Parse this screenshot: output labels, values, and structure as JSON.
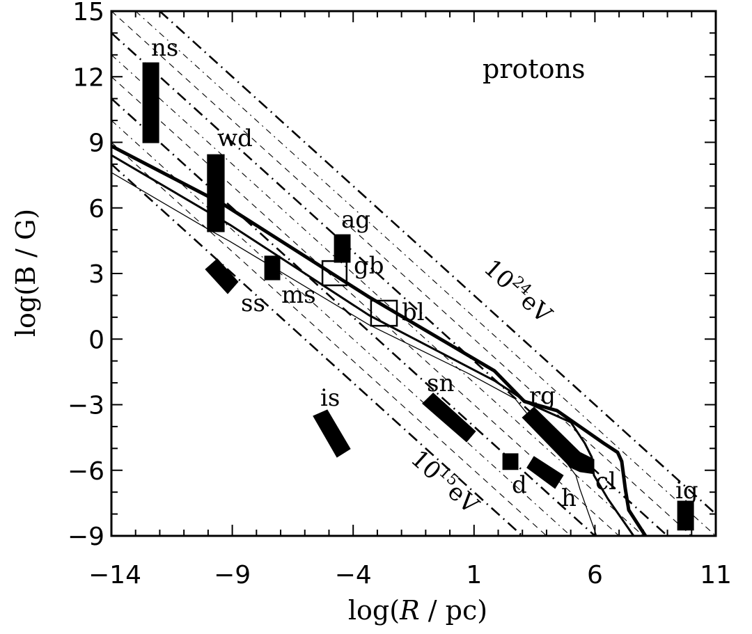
{
  "chart_data": {
    "type": "scatter",
    "title": "protons",
    "xlabel": "log(R / pc)",
    "xlabel_parts": {
      "pre": "log(",
      "var": "R",
      "post": " / pc)"
    },
    "ylabel": "log(B / G)",
    "ylabel_parts": {
      "pre": "log(",
      "var": "B",
      "post": " / G)"
    },
    "xlim": [
      -14,
      11
    ],
    "ylim": [
      -9,
      15
    ],
    "xticks": [
      -14,
      -9,
      -4,
      1,
      6,
      11
    ],
    "xtick_labels": [
      "−14",
      "−9",
      "−4",
      "1",
      "6",
      "11"
    ],
    "yticks": [
      -9,
      -6,
      -3,
      0,
      3,
      6,
      9,
      12,
      15
    ],
    "ytick_labels": [
      "−9",
      "−6",
      "−3",
      "0",
      "3",
      "6",
      "9",
      "12",
      "15"
    ],
    "energy_lines": {
      "description_slope": -1,
      "major": [
        {
          "log_E": 15,
          "intercept": -6
        },
        {
          "log_E": 18,
          "intercept": -3
        },
        {
          "log_E": 21,
          "intercept": 0
        },
        {
          "log_E": 24,
          "intercept": 3
        }
      ],
      "minor": [
        {
          "log_E": 16,
          "intercept": -5
        },
        {
          "log_E": 17,
          "intercept": -4
        },
        {
          "log_E": 19,
          "intercept": -2
        },
        {
          "log_E": 20,
          "intercept": -1
        },
        {
          "log_E": 22,
          "intercept": 1
        },
        {
          "log_E": 23,
          "intercept": 2
        }
      ],
      "labels": [
        {
          "base": "10",
          "exp": "15",
          "unit": "eV"
        },
        {
          "base": "10",
          "exp": "24",
          "unit": "eV"
        }
      ]
    },
    "curves": [
      {
        "name": "thick",
        "points": [
          [
            -14,
            8.83
          ],
          [
            -9.39,
            6.18
          ],
          [
            -3.34,
            1.92
          ],
          [
            1.84,
            -1.45
          ],
          [
            3.08,
            -2.85
          ],
          [
            4.43,
            -3.27
          ],
          [
            6.36,
            -4.76
          ],
          [
            6.94,
            -5.18
          ],
          [
            7.11,
            -5.59
          ],
          [
            7.26,
            -6.86
          ],
          [
            7.4,
            -7.82
          ],
          [
            8.09,
            -9.0
          ]
        ]
      },
      {
        "name": "medium",
        "points": [
          [
            -14,
            8.41
          ],
          [
            -9.1,
            5.23
          ],
          [
            -3.34,
            1.09
          ],
          [
            1.84,
            -1.9
          ],
          [
            3.28,
            -2.95
          ],
          [
            5.01,
            -3.81
          ],
          [
            5.58,
            -4.76
          ],
          [
            5.87,
            -5.4
          ],
          [
            5.96,
            -6.23
          ],
          [
            6.54,
            -7.31
          ],
          [
            7.6,
            -9.0
          ]
        ]
      },
      {
        "name": "thin",
        "points": [
          [
            -14,
            7.62
          ],
          [
            -9.97,
            5.01
          ],
          [
            -9.1,
            4.47
          ],
          [
            -3.34,
            0.65
          ],
          [
            0.78,
            -1.58
          ],
          [
            2.7,
            -2.73
          ],
          [
            3.86,
            -4.32
          ],
          [
            4.72,
            -5.5
          ],
          [
            5.21,
            -6.23
          ],
          [
            5.38,
            -6.86
          ],
          [
            5.79,
            -8.14
          ],
          [
            6.07,
            -9.0
          ]
        ]
      }
    ],
    "sources": [
      {
        "label": "ns",
        "filled": true,
        "shape": [
          [
            -12.7,
            12.64
          ],
          [
            -12.04,
            12.64
          ],
          [
            -12.04,
            8.98
          ],
          [
            -12.7,
            8.98
          ]
        ]
      },
      {
        "label": "wd",
        "filled": true,
        "shape": [
          [
            -10.03,
            8.44
          ],
          [
            -9.33,
            8.44
          ],
          [
            -9.33,
            4.91
          ],
          [
            -10.03,
            4.91
          ]
        ]
      },
      {
        "label": "ss",
        "filled": true,
        "shape": [
          [
            -10.11,
            3.19
          ],
          [
            -9.62,
            3.67
          ],
          [
            -8.76,
            2.62
          ],
          [
            -9.19,
            2.08
          ]
        ]
      },
      {
        "label": "ms",
        "filled": true,
        "shape": [
          [
            -7.66,
            3.8
          ],
          [
            -7.03,
            3.8
          ],
          [
            -7.03,
            2.71
          ],
          [
            -7.66,
            2.71
          ]
        ]
      },
      {
        "label": "ag",
        "filled": true,
        "shape": [
          [
            -4.78,
            4.78
          ],
          [
            -4.12,
            4.78
          ],
          [
            -4.12,
            3.51
          ],
          [
            -4.78,
            3.51
          ]
        ]
      },
      {
        "label": "gb",
        "filled": false,
        "shape": [
          [
            -5.27,
            3.57
          ],
          [
            -4.27,
            3.57
          ],
          [
            -4.27,
            2.46
          ],
          [
            -5.27,
            2.46
          ]
        ]
      },
      {
        "label": "bl",
        "filled": false,
        "shape": [
          [
            -3.26,
            1.76
          ],
          [
            -2.19,
            1.76
          ],
          [
            -2.19,
            0.61
          ],
          [
            -3.26,
            0.61
          ]
        ]
      },
      {
        "label": "is",
        "filled": true,
        "shape": [
          [
            -5.65,
            -3.52
          ],
          [
            -5.07,
            -3.24
          ],
          [
            -4.12,
            -5.02
          ],
          [
            -4.67,
            -5.4
          ]
        ]
      },
      {
        "label": "sn",
        "filled": true,
        "shape": [
          [
            -1.13,
            -2.95
          ],
          [
            -0.69,
            -2.47
          ],
          [
            1.06,
            -4.22
          ],
          [
            0.69,
            -4.7
          ]
        ]
      },
      {
        "label": "d",
        "filled": true,
        "shape": [
          [
            2.19,
            -5.24
          ],
          [
            2.82,
            -5.24
          ],
          [
            2.82,
            -5.97
          ],
          [
            2.19,
            -5.97
          ]
        ]
      },
      {
        "label": "h",
        "filled": true,
        "shape": [
          [
            3.19,
            -5.88
          ],
          [
            3.48,
            -5.37
          ],
          [
            4.69,
            -6.23
          ],
          [
            4.35,
            -6.83
          ]
        ]
      },
      {
        "label": "rg",
        "filled": true,
        "shape": [
          [
            3.0,
            -3.59
          ],
          [
            3.48,
            -3.11
          ],
          [
            5.38,
            -5.18
          ],
          [
            5.96,
            -5.5
          ],
          [
            5.96,
            -6.16
          ],
          [
            5.38,
            -6.07
          ],
          [
            5.01,
            -5.88
          ]
        ]
      },
      {
        "label": "cl",
        "filled": true,
        "shape": []
      },
      {
        "label": "ig",
        "filled": true,
        "shape": [
          [
            9.42,
            -7.41
          ],
          [
            10.08,
            -7.41
          ],
          [
            10.08,
            -8.74
          ],
          [
            9.42,
            -8.74
          ]
        ]
      }
    ]
  }
}
